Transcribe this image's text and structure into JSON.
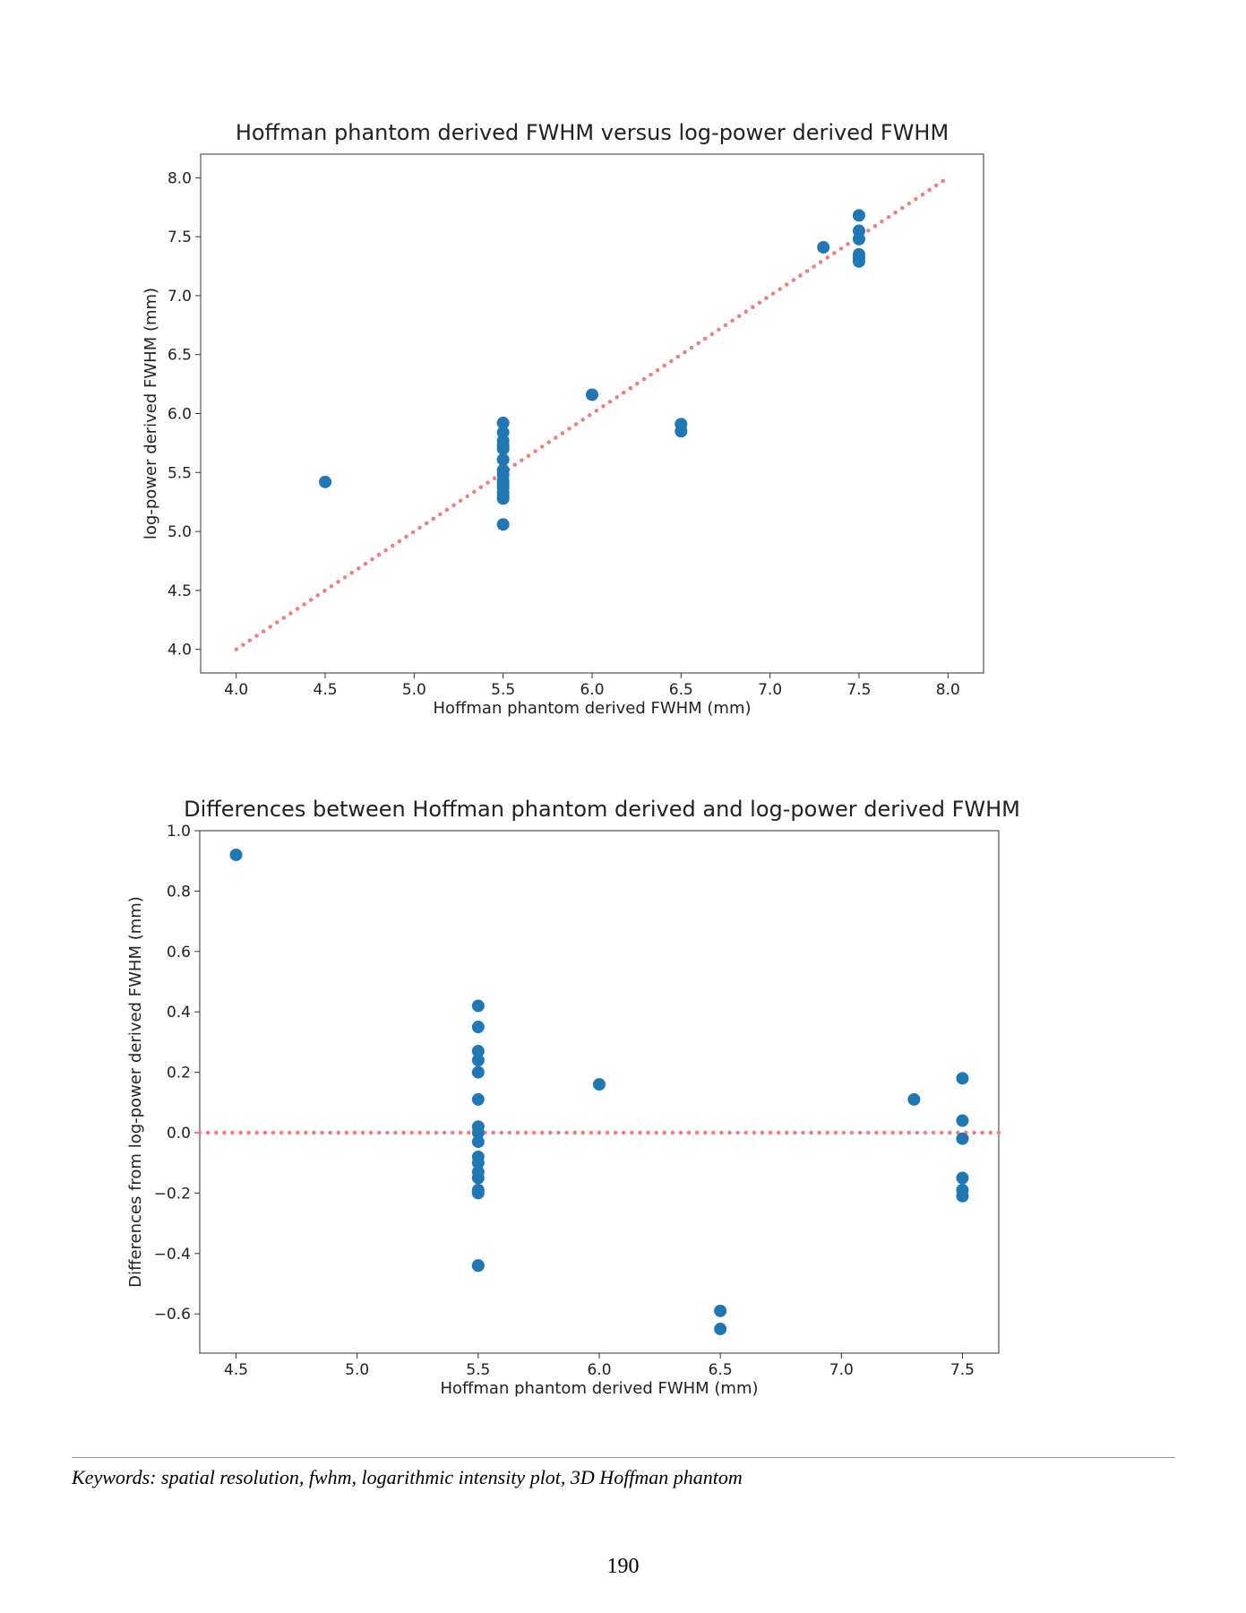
{
  "chart_data": [
    {
      "type": "scatter",
      "title": "Hoffman phantom derived FWHM versus log-power derived FWHM",
      "xlabel": "Hoffman phantom derived FWHM (mm)",
      "ylabel": "log-power derived FWHM (mm)",
      "xlim": [
        3.8,
        8.2
      ],
      "ylim": [
        3.8,
        8.2
      ],
      "xticks": [
        4.0,
        4.5,
        5.0,
        5.5,
        6.0,
        6.5,
        7.0,
        7.5,
        8.0
      ],
      "yticks": [
        4.0,
        4.5,
        5.0,
        5.5,
        6.0,
        6.5,
        7.0,
        7.5,
        8.0
      ],
      "x": [
        4.5,
        5.5,
        5.5,
        5.5,
        5.5,
        5.5,
        5.5,
        5.5,
        5.5,
        5.5,
        5.5,
        5.5,
        5.5,
        5.5,
        5.5,
        5.5,
        6.0,
        6.5,
        6.5,
        7.3,
        7.5,
        7.5,
        7.5,
        7.5,
        7.5,
        7.5
      ],
      "y": [
        5.42,
        5.92,
        5.84,
        5.77,
        5.73,
        5.7,
        5.61,
        5.52,
        5.48,
        5.43,
        5.4,
        5.37,
        5.33,
        5.3,
        5.28,
        5.06,
        6.16,
        5.91,
        5.85,
        7.41,
        7.68,
        7.55,
        7.48,
        7.35,
        7.32,
        7.29
      ],
      "reference_line": {
        "x": [
          4.0,
          8.0
        ],
        "y": [
          4.0,
          8.0
        ],
        "color": "#f08080",
        "style": "dotted"
      },
      "marker_color": "#1f77b4"
    },
    {
      "type": "scatter",
      "title": "Differences between Hoffman phantom derived and log-power derived FWHM",
      "xlabel": "Hoffman phantom derived FWHM (mm)",
      "ylabel": "Differences from log-power derived FWHM (mm)",
      "xlim": [
        4.35,
        7.65
      ],
      "ylim": [
        -0.73,
        1.0
      ],
      "xticks": [
        4.5,
        5.0,
        5.5,
        6.0,
        6.5,
        7.0,
        7.5
      ],
      "yticks": [
        1.0,
        0.8,
        0.6,
        0.4,
        0.2,
        0.0,
        -0.2,
        -0.4,
        -0.6
      ],
      "x": [
        4.5,
        5.5,
        5.5,
        5.5,
        5.5,
        5.5,
        5.5,
        5.5,
        5.5,
        5.5,
        5.5,
        5.5,
        5.5,
        5.5,
        5.5,
        5.5,
        5.5,
        5.5,
        6.0,
        6.5,
        6.5,
        7.3,
        7.5,
        7.5,
        7.5,
        7.5,
        7.5,
        7.5
      ],
      "y": [
        0.92,
        0.42,
        0.35,
        0.27,
        0.24,
        0.2,
        0.11,
        0.02,
        0.0,
        -0.03,
        -0.08,
        -0.1,
        -0.13,
        -0.15,
        -0.19,
        -0.2,
        -0.44,
        -0.44,
        0.16,
        -0.59,
        -0.65,
        0.11,
        0.18,
        0.04,
        -0.02,
        -0.15,
        -0.19,
        -0.21
      ],
      "reference_line": {
        "x": [
          4.35,
          7.65
        ],
        "y": [
          0.0,
          0.0
        ],
        "color": "#f08080",
        "style": "dotted"
      },
      "marker_color": "#1f77b4"
    }
  ],
  "footer": {
    "keywords": "Keywords: spatial resolution, fwhm, logarithmic intensity plot, 3D Hoffman phantom",
    "page_number": "190"
  }
}
